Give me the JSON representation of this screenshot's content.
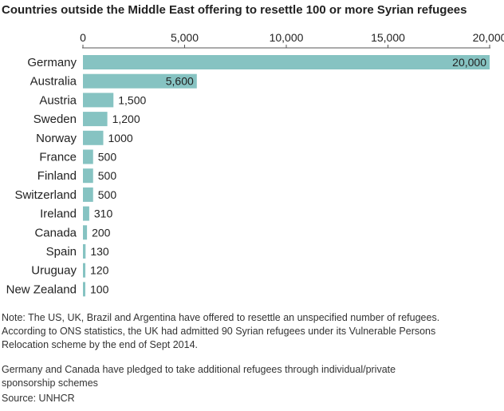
{
  "title": "Countries outside the Middle East offering to resettle 100 or more Syrian refugees",
  "chart_data": {
    "type": "bar",
    "orientation": "horizontal",
    "categories": [
      "Germany",
      "Australia",
      "Austria",
      "Sweden",
      "Norway",
      "France",
      "Finland",
      "Switzerland",
      "Ireland",
      "Canada",
      "Spain",
      "Uruguay",
      "New Zealand"
    ],
    "values": [
      20000,
      5600,
      1500,
      1200,
      1000,
      500,
      500,
      500,
      310,
      200,
      130,
      120,
      100
    ],
    "value_labels": [
      "20,000",
      "5,600",
      "1,500",
      "1,200",
      "1000",
      "500",
      "500",
      "500",
      "310",
      "200",
      "130",
      "120",
      "100"
    ],
    "xlim": [
      0,
      20000
    ],
    "ticks": [
      0,
      5000,
      10000,
      15000,
      20000
    ],
    "tick_labels": [
      "0",
      "5,000",
      "10,000",
      "15,000",
      "20,000"
    ],
    "axis_position": "top",
    "grid": false,
    "bar_color": "#86c3c2"
  },
  "notes": {
    "line1": "Note: The US, UK, Brazil and Argentina have offered to resettle an unspecified number of refugees.",
    "line2": "According to ONS statistics, the UK had admitted 90 Syrian refugees under its Vulnerable Persons",
    "line3": "Relocation scheme by the end of Sept 2014.",
    "line4": "Germany and Canada have pledged to take additional refugees through individual/private",
    "line5": "sponsorship schemes",
    "source": "Source: UNHCR"
  }
}
